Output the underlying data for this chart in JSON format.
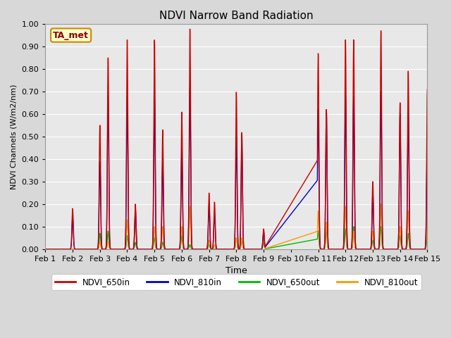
{
  "title": "NDVI Narrow Band Radiation",
  "xlabel": "Time",
  "ylabel": "NDVI Channels (W/m2/nm)",
  "annotation": "TA_met",
  "ylim": [
    0.0,
    1.0
  ],
  "yticks": [
    0.0,
    0.1,
    0.2,
    0.3,
    0.4,
    0.5,
    0.6,
    0.7,
    0.8,
    0.9,
    1.0
  ],
  "xtick_labels": [
    "Feb 1",
    "Feb 2",
    "Feb 3",
    "Feb 4",
    "Feb 5",
    "Feb 6",
    "Feb 7",
    "Feb 8",
    "Feb 9",
    "Feb 10",
    "Feb 11",
    "Feb 12",
    "Feb 13",
    "Feb 14",
    "Feb 15"
  ],
  "colors": {
    "NDVI_650in": "#cc0000",
    "NDVI_810in": "#0000cc",
    "NDVI_650out": "#00bb00",
    "NDVI_810out": "#ff9900"
  },
  "background_color": "#e8e8e8",
  "grid_color": "#ffffff",
  "note_bg": "#ffffcc",
  "note_border": "#cc8800",
  "figsize": [
    6.4,
    4.8
  ],
  "dpi": 100
}
